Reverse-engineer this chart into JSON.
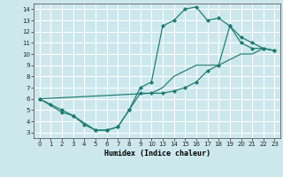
{
  "xlabel": "Humidex (Indice chaleur)",
  "bg_color": "#cde8ec",
  "grid_color": "#ffffff",
  "line_color": "#1a7a6e",
  "xtick_labels": [
    "0",
    "1",
    "2",
    "3",
    "4",
    "5",
    "6",
    "7",
    "8",
    "9",
    "10",
    "13",
    "14",
    "15",
    "16",
    "17",
    "18",
    "19",
    "20",
    "21",
    "22",
    "23"
  ],
  "xtick_positions": [
    0,
    1,
    2,
    3,
    4,
    5,
    6,
    7,
    8,
    9,
    10,
    11,
    12,
    13,
    14,
    15,
    16,
    17,
    18,
    19,
    20,
    21
  ],
  "yticks": [
    3,
    4,
    5,
    6,
    7,
    8,
    9,
    10,
    11,
    12,
    13,
    14
  ],
  "xlim": [
    -0.5,
    21.5
  ],
  "ylim": [
    2.5,
    14.5
  ],
  "curve1_x": [
    0,
    1,
    2,
    3,
    4,
    5,
    6,
    7,
    8,
    9,
    10,
    11,
    12,
    13,
    14,
    15,
    16,
    17,
    18,
    19,
    20,
    21
  ],
  "curve1_y": [
    6.0,
    5.5,
    5.0,
    4.5,
    3.7,
    3.2,
    3.2,
    3.5,
    5.0,
    7.0,
    7.5,
    12.5,
    13.0,
    14.0,
    14.2,
    13.0,
    13.2,
    12.5,
    11.5,
    11.0,
    10.5,
    10.3
  ],
  "curve2_x": [
    0,
    10,
    11,
    12,
    13,
    14,
    15,
    16,
    17,
    18,
    19,
    20,
    21
  ],
  "curve2_y": [
    6.0,
    6.5,
    7.0,
    8.0,
    8.5,
    9.0,
    9.0,
    9.0,
    9.5,
    10.0,
    10.0,
    10.5,
    10.3
  ],
  "curve3_x": [
    0,
    2,
    3,
    5,
    6,
    7,
    8,
    9,
    10,
    11,
    12,
    13,
    14,
    15,
    16,
    17,
    18,
    19,
    20,
    21
  ],
  "curve3_y": [
    6.0,
    4.8,
    4.5,
    3.2,
    3.2,
    3.5,
    5.0,
    6.5,
    6.5,
    6.5,
    6.7,
    7.0,
    7.5,
    8.5,
    9.0,
    12.5,
    11.0,
    10.5,
    10.5,
    10.3
  ]
}
